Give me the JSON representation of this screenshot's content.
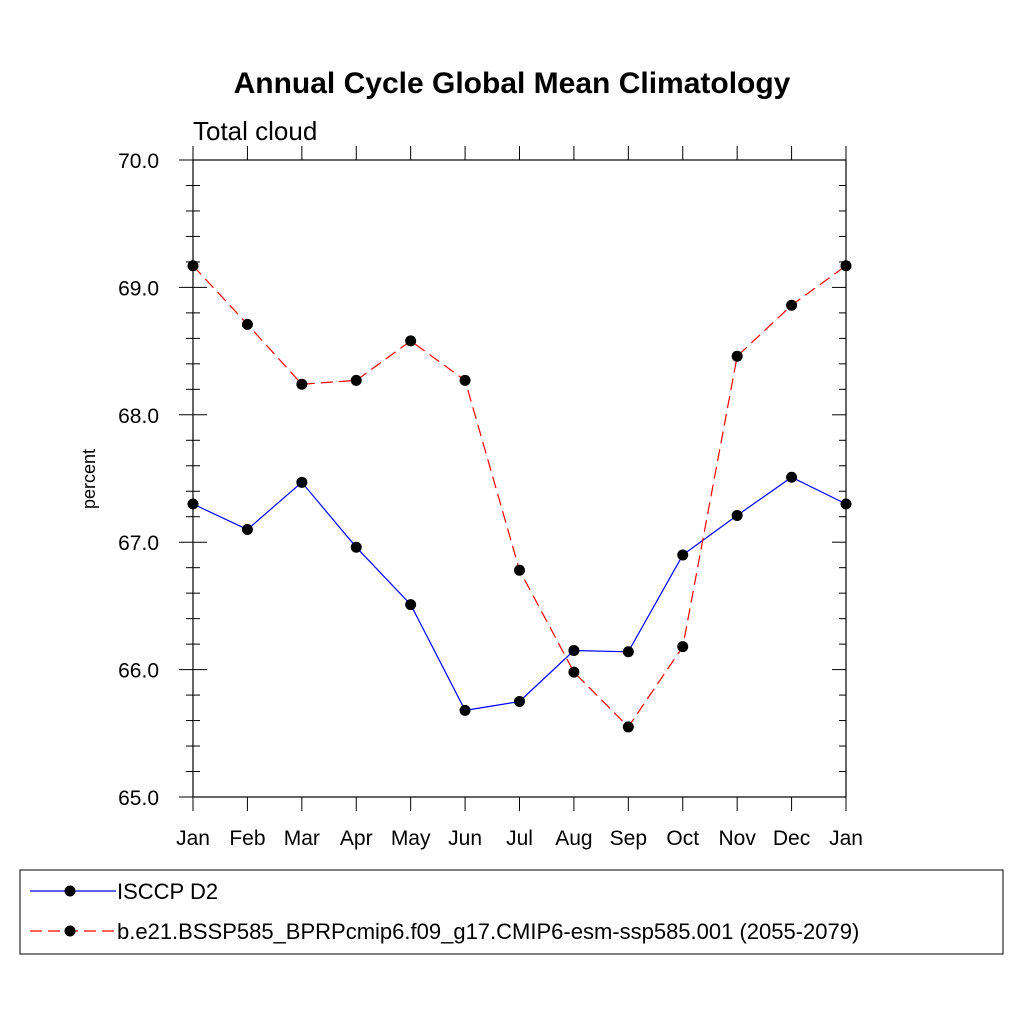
{
  "chart_data": {
    "type": "line",
    "title": "Annual Cycle Global Mean Climatology",
    "subtitle": "Total cloud",
    "xlabel": "",
    "ylabel": "percent",
    "categories": [
      "Jan",
      "Feb",
      "Mar",
      "Apr",
      "May",
      "Jun",
      "Jul",
      "Aug",
      "Sep",
      "Oct",
      "Nov",
      "Dec",
      "Jan"
    ],
    "ylim": [
      65.0,
      70.0
    ],
    "yticks": [
      "65.0",
      "66.0",
      "67.0",
      "68.0",
      "69.0",
      "70.0"
    ],
    "grid": false,
    "legend_position": "bottom",
    "series": [
      {
        "name": "ISCCP D2",
        "color": "#0000ff",
        "dash": "solid",
        "values": [
          67.3,
          67.1,
          67.47,
          66.96,
          66.51,
          65.68,
          65.75,
          66.15,
          66.14,
          66.9,
          67.21,
          67.51,
          67.3
        ]
      },
      {
        "name": "b.e21.BSSP585_BPRPcmip6.f09_g17.CMIP6-esm-ssp585.001 (2055-2079)",
        "color": "#ff0000",
        "dash": "dashed",
        "values": [
          69.17,
          68.71,
          68.24,
          68.27,
          68.58,
          68.27,
          66.78,
          65.98,
          65.55,
          66.18,
          68.46,
          68.86,
          69.17
        ]
      }
    ]
  }
}
